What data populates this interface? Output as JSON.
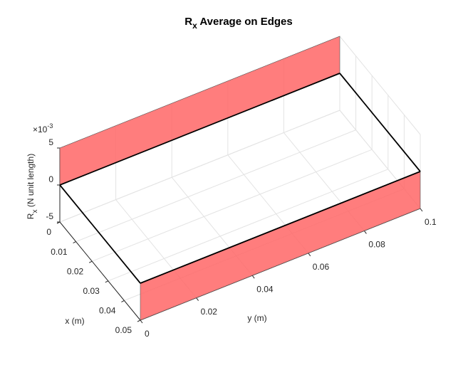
{
  "chart_data": {
    "type": "edge-panels-3d",
    "title_parts": [
      "R",
      "x",
      " Average on Edges"
    ],
    "xlabel": "x (m)",
    "ylabel": "y (m)",
    "zlabel_parts": [
      "R",
      "x",
      " (N unit length)"
    ],
    "z_exponent_parts": [
      "×10",
      "-3"
    ],
    "xlim": [
      0,
      0.05
    ],
    "ylim": [
      0,
      0.1
    ],
    "zlim": [
      -0.005,
      0.005
    ],
    "xticks": [
      0,
      0.01,
      0.02,
      0.03,
      0.04,
      0.05
    ],
    "yticks": [
      0,
      0.02,
      0.04,
      0.06,
      0.08,
      0.1
    ],
    "zticks": [
      {
        "value": -0.005,
        "label": "-5"
      },
      {
        "value": 0,
        "label": "0"
      },
      {
        "value": 0.005,
        "label": "5"
      }
    ],
    "grid": true,
    "color": "#ff6666",
    "edges": [
      {
        "x": [
          0,
          0
        ],
        "y": [
          0,
          0.1
        ],
        "values": [
          0.005,
          0.005
        ]
      },
      {
        "x": [
          0,
          0.05
        ],
        "y": [
          0.1,
          0.1
        ],
        "values": [
          0,
          0
        ]
      },
      {
        "x": [
          0,
          0.05
        ],
        "y": [
          0,
          0
        ],
        "values": [
          0,
          0
        ]
      },
      {
        "x": [
          0.05,
          0.05
        ],
        "y": [
          0,
          0.1
        ],
        "values": [
          -0.005,
          -0.005
        ]
      }
    ]
  }
}
